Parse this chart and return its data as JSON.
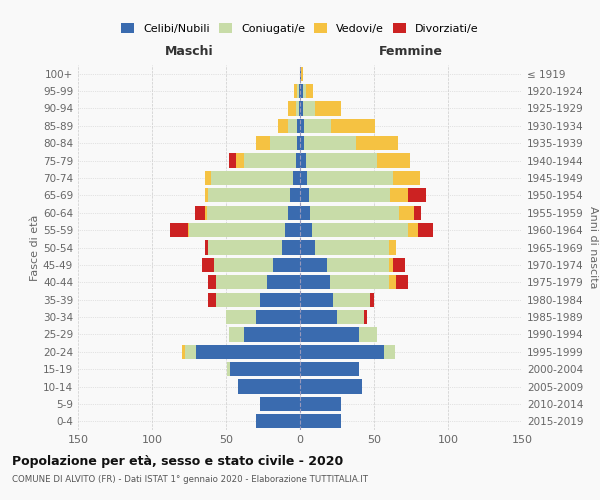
{
  "age_groups": [
    "0-4",
    "5-9",
    "10-14",
    "15-19",
    "20-24",
    "25-29",
    "30-34",
    "35-39",
    "40-44",
    "45-49",
    "50-54",
    "55-59",
    "60-64",
    "65-69",
    "70-74",
    "75-79",
    "80-84",
    "85-89",
    "90-94",
    "95-99",
    "100+"
  ],
  "birth_years": [
    "2015-2019",
    "2010-2014",
    "2005-2009",
    "2000-2004",
    "1995-1999",
    "1990-1994",
    "1985-1989",
    "1980-1984",
    "1975-1979",
    "1970-1974",
    "1965-1969",
    "1960-1964",
    "1955-1959",
    "1950-1954",
    "1945-1949",
    "1940-1944",
    "1935-1939",
    "1930-1934",
    "1925-1929",
    "1920-1924",
    "≤ 1919"
  ],
  "maschi_celibi": [
    30,
    27,
    42,
    47,
    70,
    38,
    30,
    27,
    22,
    18,
    12,
    10,
    8,
    7,
    5,
    3,
    2,
    2,
    1,
    1,
    0
  ],
  "maschi_coniugati": [
    0,
    0,
    0,
    2,
    8,
    10,
    20,
    30,
    35,
    40,
    50,
    65,
    55,
    55,
    55,
    35,
    18,
    6,
    2,
    1,
    0
  ],
  "maschi_vedovi": [
    0,
    0,
    0,
    0,
    2,
    0,
    0,
    0,
    0,
    0,
    0,
    1,
    1,
    2,
    4,
    5,
    10,
    7,
    5,
    2,
    0
  ],
  "maschi_divorziati": [
    0,
    0,
    0,
    0,
    0,
    0,
    0,
    5,
    5,
    8,
    2,
    12,
    7,
    0,
    0,
    5,
    0,
    0,
    0,
    0,
    0
  ],
  "femmine_celibi": [
    28,
    28,
    42,
    40,
    57,
    40,
    25,
    22,
    20,
    18,
    10,
    8,
    7,
    6,
    5,
    4,
    3,
    3,
    2,
    2,
    1
  ],
  "femmine_coniugati": [
    0,
    0,
    0,
    0,
    7,
    12,
    18,
    25,
    40,
    42,
    50,
    65,
    60,
    55,
    58,
    48,
    35,
    18,
    8,
    2,
    0
  ],
  "femmine_vedovi": [
    0,
    0,
    0,
    0,
    0,
    0,
    0,
    0,
    5,
    3,
    5,
    7,
    10,
    12,
    18,
    22,
    28,
    30,
    18,
    5,
    1
  ],
  "femmine_divorziati": [
    0,
    0,
    0,
    0,
    0,
    0,
    2,
    3,
    8,
    8,
    0,
    10,
    5,
    12,
    0,
    0,
    0,
    0,
    0,
    0,
    0
  ],
  "colors": {
    "celibi": "#3a6baf",
    "coniugati": "#c8dca8",
    "vedovi": "#f5c242",
    "divorziati": "#cc2222"
  },
  "xlim": 150,
  "title": "Popolazione per età, sesso e stato civile - 2020",
  "subtitle": "COMUNE DI ALVITO (FR) - Dati ISTAT 1° gennaio 2020 - Elaborazione TUTTITALIA.IT",
  "xlabel_left": "Maschi",
  "xlabel_right": "Femmine",
  "ylabel_left": "Fasce di età",
  "ylabel_right": "Anni di nascita",
  "bg_color": "#f9f9f9",
  "grid_color": "#cccccc"
}
